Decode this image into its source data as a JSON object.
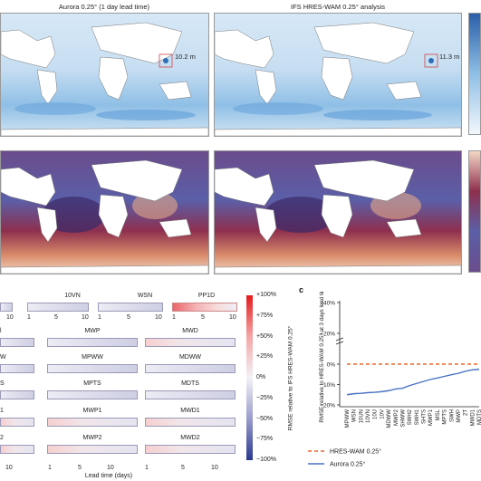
{
  "maps": {
    "top_left_title": "Aurora 0.25° (1 day lead time)",
    "top_right_title": "IFS HRES-WAM 0.25° analysis",
    "left_annotation": "10.2 m",
    "right_annotation": "11.3 m"
  },
  "heatmaps": {
    "row1": [
      "10VN",
      "WSN",
      "PP1D"
    ],
    "row1_ticks": [
      "10",
      "1",
      "5",
      "10",
      "1",
      "5",
      "10",
      "1",
      "5",
      "10"
    ],
    "rows": [
      [
        "MWP",
        "MWD"
      ],
      [
        "MPWW",
        "MDWW"
      ],
      [
        "MPTS",
        "MDTS"
      ],
      [
        "MWP1",
        "MWD1"
      ],
      [
        "MWP2",
        "MWD2"
      ]
    ],
    "left_fragments": [
      "l",
      "W",
      "S",
      "1",
      "2"
    ],
    "bottom_ticks": [
      "10",
      "1",
      "5",
      "10",
      "1",
      "5",
      "10"
    ],
    "xlabel": "Lead time (days)"
  },
  "colorbar": {
    "ticks": [
      "+100%",
      "+75%",
      "+50%",
      "+25%",
      "0%",
      "−25%",
      "−50%",
      "−75%",
      "−100%"
    ],
    "label": "RMSE relative to IFS HRES-WAM 0.25°",
    "low_color": "#2b3990",
    "high_color": "#e31a1c"
  },
  "panel_c_label": "c",
  "chart_data": {
    "type": "line",
    "ylabel": "RMSE relative to HRES-WAM 0.25° at 3 days lead time",
    "y_ticks": [
      "+40%",
      "+20%",
      "0%",
      "−10%",
      "−20%"
    ],
    "categories": [
      "MPWW",
      "WSN",
      "10UN",
      "10VN",
      "10U",
      "10V",
      "MDWW",
      "MWP2",
      "SHWW",
      "SWH2",
      "SWH1",
      "SHTS",
      "MWP1",
      "MSL",
      "MPTS",
      "SWH",
      "MWP",
      "2T",
      "MWD1",
      "MDTS"
    ],
    "series": [
      {
        "name": "HRES-WAM 0.25°",
        "color": "#e8692a",
        "style": "dashed",
        "values": [
          0,
          0,
          0,
          0,
          0,
          0,
          0,
          0,
          0,
          0,
          0,
          0,
          0,
          0,
          0,
          0,
          0,
          0,
          0,
          0
        ]
      },
      {
        "name": "Aurora 0.25°",
        "color": "#4a72c4",
        "style": "solid",
        "values": [
          -15,
          -14.5,
          -14.3,
          -14,
          -13.8,
          -13.5,
          -13,
          -12.2,
          -11.8,
          -10.5,
          -9.5,
          -8.5,
          -7.5,
          -6.8,
          -6,
          -5.2,
          -4.5,
          -3.5,
          -2.8,
          -2.5
        ]
      }
    ]
  }
}
